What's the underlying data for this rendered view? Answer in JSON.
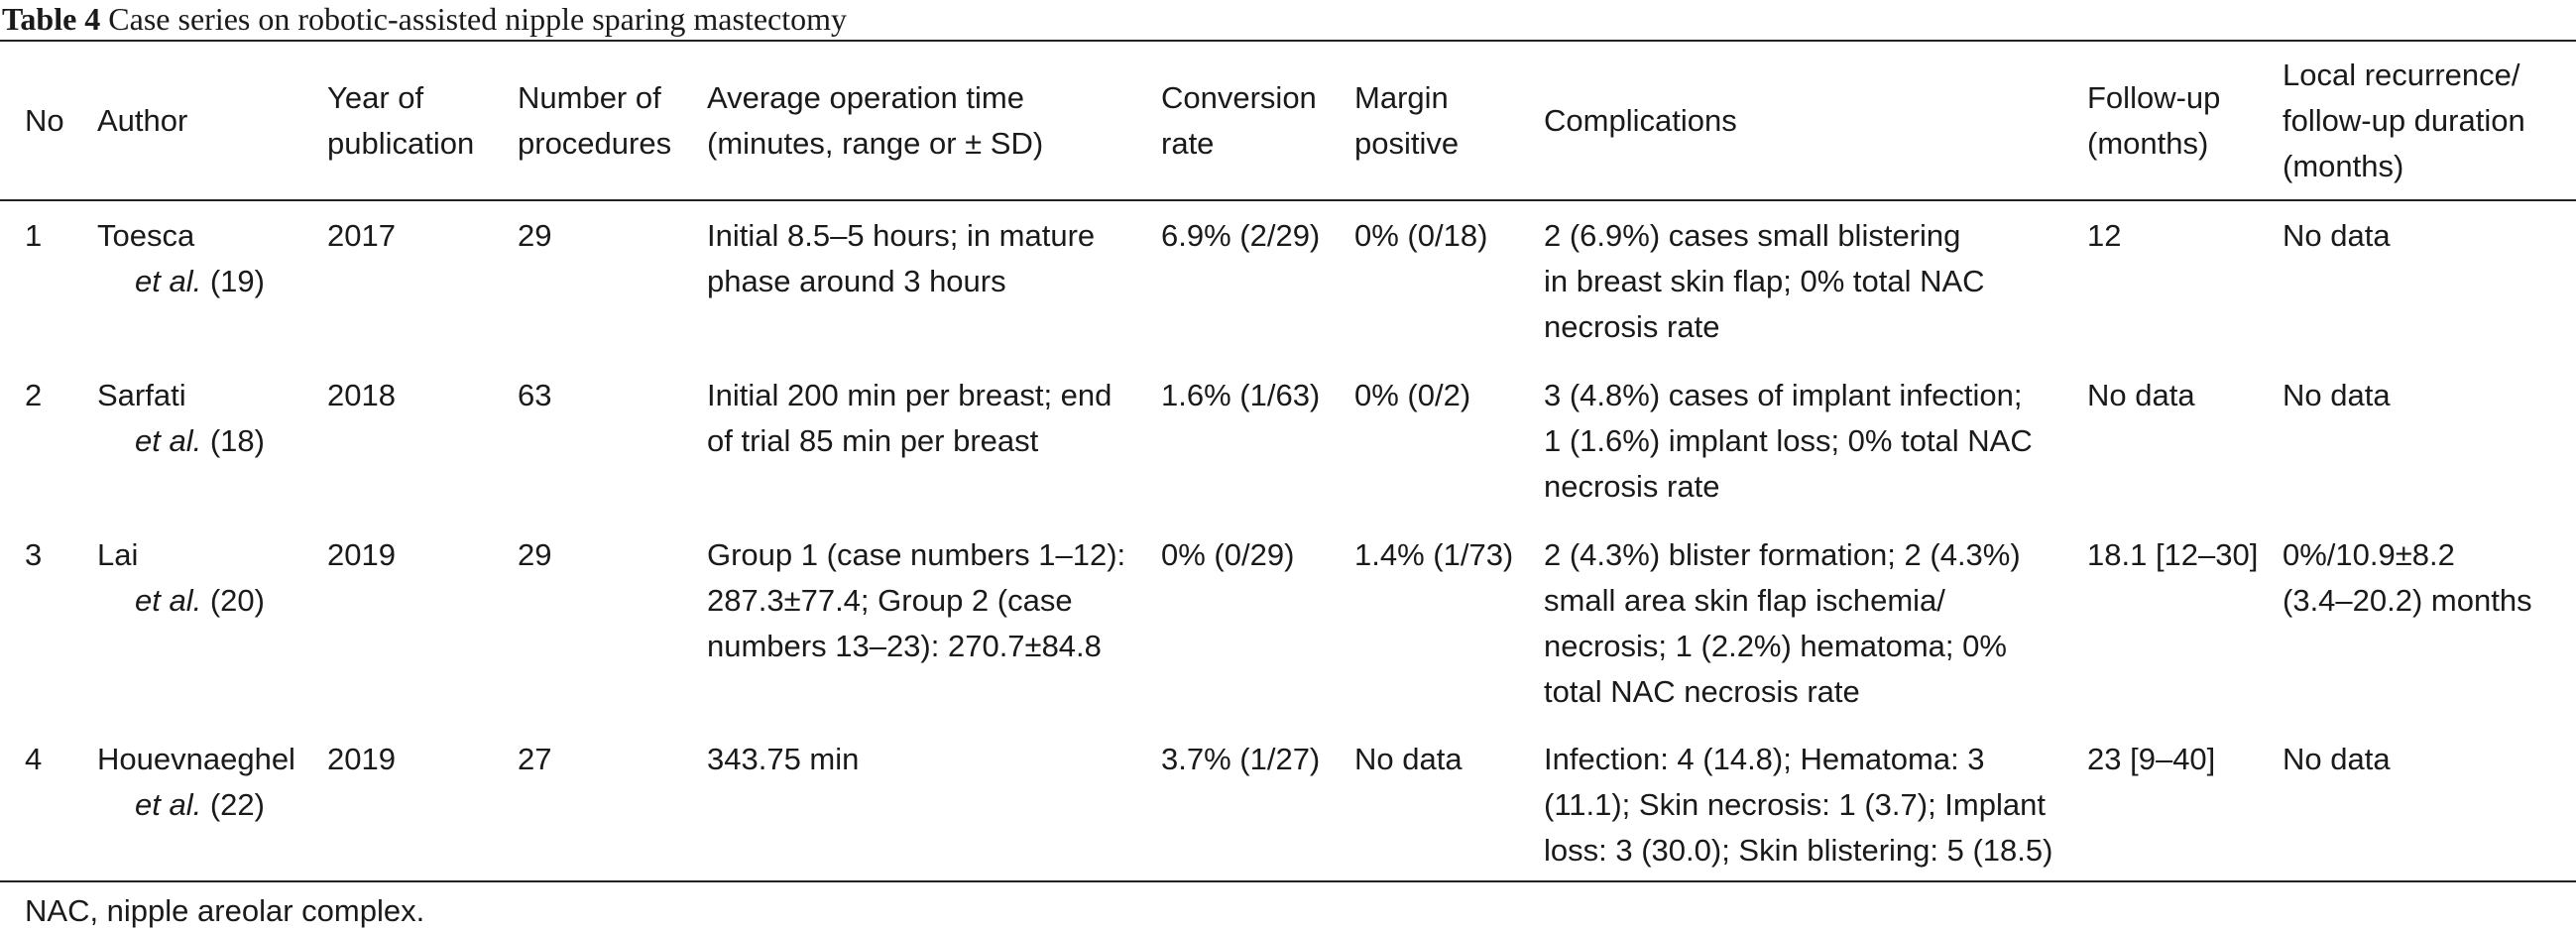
{
  "caption": {
    "label": "Table 4",
    "title": "Case series on robotic-assisted nipple sparing mastectomy"
  },
  "headers": {
    "no": "No",
    "author": "Author",
    "year": [
      "Year of",
      "publication"
    ],
    "number": [
      "Number of",
      "procedures"
    ],
    "optime": [
      "Average operation time",
      "(minutes, range or ± SD)"
    ],
    "conversion": [
      "Conversion",
      "rate"
    ],
    "margin": [
      "Margin",
      "positive"
    ],
    "complications": "Complications",
    "followup": [
      "Follow-up",
      "(months)"
    ],
    "recurrence": [
      "Local recurrence/",
      "follow-up duration",
      "(months)"
    ]
  },
  "rows": [
    {
      "no": "1",
      "author_name": "Toesca",
      "author_etal": "et al.",
      "author_ref": " (19)",
      "year": "2017",
      "number": "29",
      "optime": [
        "Initial 8.5–5 hours; in mature",
        "phase around 3 hours"
      ],
      "conversion": "6.9% (2/29)",
      "margin": "0% (0/18)",
      "complications": [
        "2 (6.9%) cases small blistering",
        "in breast skin flap; 0% total NAC",
        "necrosis rate"
      ],
      "followup": "12",
      "recurrence": [
        "No data"
      ]
    },
    {
      "no": "2",
      "author_name": "Sarfati",
      "author_etal": "et al.",
      "author_ref": " (18)",
      "year": "2018",
      "number": "63",
      "optime": [
        "Initial 200 min per breast; end",
        "of trial 85 min per breast"
      ],
      "conversion": "1.6% (1/63)",
      "margin": "0% (0/2)",
      "complications": [
        "3 (4.8%) cases of implant infection;",
        "1 (1.6%) implant loss; 0% total NAC",
        "necrosis rate"
      ],
      "followup": "No data",
      "recurrence": [
        "No data"
      ]
    },
    {
      "no": "3",
      "author_name": "Lai",
      "author_etal": "et al.",
      "author_ref": " (20)",
      "year": "2019",
      "number": "29",
      "optime": [
        "Group 1 (case numbers 1–12):",
        "287.3±77.4; Group 2 (case",
        "numbers 13–23): 270.7±84.8"
      ],
      "conversion": "0% (0/29)",
      "margin": "1.4% (1/73)",
      "complications": [
        "2 (4.3%) blister formation; 2 (4.3%)",
        "small area skin flap ischemia/",
        "necrosis; 1 (2.2%) hematoma; 0%",
        "total NAC necrosis rate"
      ],
      "followup": "18.1 [12–30]",
      "recurrence": [
        "0%/10.9±8.2",
        "(3.4–20.2) months"
      ]
    },
    {
      "no": "4",
      "author_name": "Houevnaeghel",
      "author_etal": "et al.",
      "author_ref": " (22)",
      "year": "2019",
      "number": "27",
      "optime": [
        "343.75 min"
      ],
      "conversion": "3.7% (1/27)",
      "margin": "No data",
      "complications": [
        "Infection: 4 (14.8); Hematoma: 3",
        "(11.1); Skin necrosis: 1 (3.7); Implant",
        "loss: 3 (30.0); Skin blistering: 5 (18.5)"
      ],
      "followup": "23 [9–40]",
      "recurrence": [
        "No data"
      ]
    }
  ],
  "footnote": "NAC, nipple areolar complex."
}
